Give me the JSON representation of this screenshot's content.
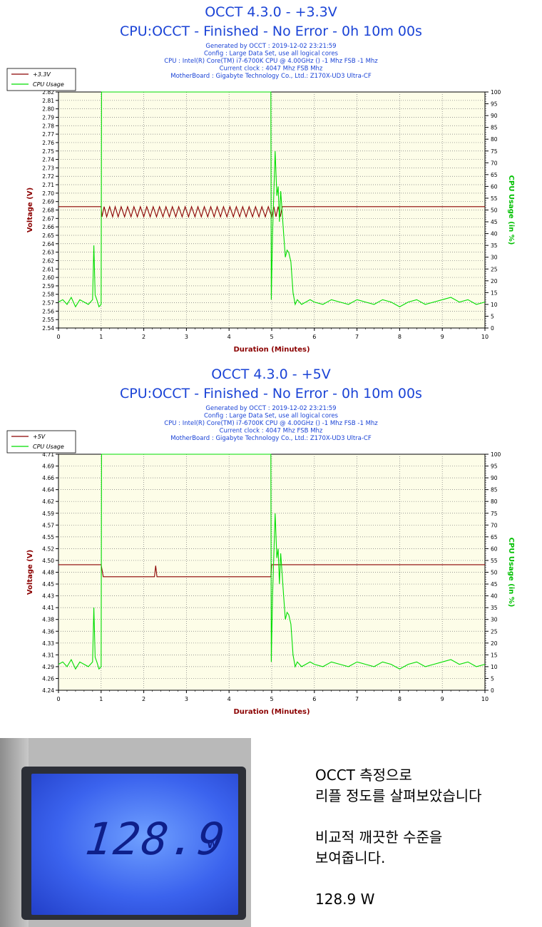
{
  "chart_data": [
    {
      "type": "line",
      "title": "OCCT 4.3.0 - +3.3V",
      "subtitle": "CPU:OCCT - Finished - No Error - 0h 10m 00s",
      "info": [
        "Generated by OCCT : 2019-12-02 23:21:59",
        "Config : Large Data Set, use all logical cores",
        "CPU : Intel(R) Core(TM) i7-6700K CPU @ 4.00GHz () -1 Mhz FSB -1 Mhz",
        "Current clock : 4047 Mhz FSB  Mhz",
        "MotherBoard : Gigabyte Technology Co., Ltd.: Z170X-UD3 Ultra-CF"
      ],
      "xlabel": "Duration (Minutes)",
      "ylabel": "Voltage (V)",
      "y2label": "CPU Usage (in %)",
      "xlim": [
        0,
        10
      ],
      "ylim": [
        2.54,
        2.82
      ],
      "y2lim": [
        0,
        100
      ],
      "x_ticks": [
        "0",
        "1",
        "2",
        "3",
        "4",
        "5",
        "6",
        "7",
        "8",
        "9",
        "10"
      ],
      "y_ticks": [
        "2.54",
        "2.55",
        "2.56",
        "2.57",
        "2.58",
        "2.59",
        "2.60",
        "2.61",
        "2.62",
        "2.63",
        "2.64",
        "2.65",
        "2.66",
        "2.67",
        "2.68",
        "2.69",
        "2.70",
        "2.71",
        "2.72",
        "2.73",
        "2.74",
        "2.75",
        "2.76",
        "2.77",
        "2.78",
        "2.79",
        "2.80",
        "2.81",
        "2.82"
      ],
      "y2_ticks": [
        "0",
        "5",
        "10",
        "15",
        "20",
        "25",
        "30",
        "35",
        "40",
        "45",
        "50",
        "55",
        "60",
        "65",
        "70",
        "75",
        "80",
        "85",
        "90",
        "95",
        "100"
      ],
      "legend_position": "top-left",
      "series": [
        {
          "name": "+3.3V",
          "color": "#8b0000",
          "axis": "left",
          "x": [
            0,
            1.0,
            1.02,
            1.07,
            1.13,
            1.2,
            1.27,
            1.33,
            1.4,
            1.47,
            1.55,
            1.62,
            1.7,
            1.77,
            1.85,
            1.92,
            2.0,
            2.07,
            2.15,
            2.22,
            2.3,
            2.37,
            2.45,
            2.52,
            2.6,
            2.67,
            2.75,
            2.82,
            2.9,
            2.97,
            3.05,
            3.12,
            3.2,
            3.27,
            3.35,
            3.42,
            3.5,
            3.57,
            3.65,
            3.72,
            3.8,
            3.87,
            3.95,
            4.02,
            4.1,
            4.17,
            4.25,
            4.32,
            4.4,
            4.47,
            4.55,
            4.62,
            4.7,
            4.77,
            4.85,
            4.92,
            5.0,
            5.05,
            5.1,
            5.15,
            5.2,
            5.25,
            5.3,
            10
          ],
          "y": [
            2.684,
            2.684,
            2.672,
            2.684,
            2.672,
            2.684,
            2.672,
            2.684,
            2.672,
            2.684,
            2.672,
            2.684,
            2.672,
            2.684,
            2.672,
            2.684,
            2.672,
            2.684,
            2.672,
            2.684,
            2.672,
            2.684,
            2.672,
            2.684,
            2.672,
            2.684,
            2.672,
            2.684,
            2.672,
            2.684,
            2.672,
            2.684,
            2.672,
            2.684,
            2.672,
            2.684,
            2.672,
            2.684,
            2.672,
            2.684,
            2.672,
            2.684,
            2.672,
            2.684,
            2.672,
            2.684,
            2.672,
            2.684,
            2.672,
            2.684,
            2.672,
            2.684,
            2.672,
            2.684,
            2.672,
            2.684,
            2.672,
            2.684,
            2.672,
            2.684,
            2.672,
            2.684,
            2.684,
            2.684
          ]
        },
        {
          "name": "CPU Usage",
          "color": "#00dd00",
          "axis": "right",
          "x": [
            0,
            0.1,
            0.2,
            0.3,
            0.4,
            0.5,
            0.6,
            0.7,
            0.8,
            0.83,
            0.86,
            0.9,
            0.95,
            1.0,
            1.01,
            1.02,
            4.98,
            4.99,
            5.02,
            5.08,
            5.12,
            5.15,
            5.18,
            5.21,
            5.25,
            5.28,
            5.32,
            5.36,
            5.4,
            5.45,
            5.5,
            5.55,
            5.6,
            5.7,
            5.8,
            5.9,
            6.0,
            6.2,
            6.4,
            6.6,
            6.8,
            7.0,
            7.2,
            7.4,
            7.6,
            7.8,
            8.0,
            8.2,
            8.4,
            8.6,
            8.8,
            9.0,
            9.2,
            9.4,
            9.6,
            9.8,
            10
          ],
          "y": [
            11,
            12,
            10,
            13,
            9,
            12,
            11,
            10,
            12,
            35,
            14,
            12,
            9,
            10,
            100,
            100,
            100,
            12,
            40,
            75,
            56,
            60,
            45,
            58,
            48,
            40,
            30,
            33,
            32,
            28,
            15,
            10,
            12,
            10,
            11,
            12,
            11,
            10,
            12,
            11,
            10,
            12,
            11,
            10,
            12,
            11,
            9,
            11,
            12,
            10,
            11,
            12,
            13,
            11,
            12,
            10,
            11
          ]
        }
      ]
    },
    {
      "type": "line",
      "title": "OCCT 4.3.0 - +5V",
      "subtitle": "CPU:OCCT - Finished - No Error - 0h 10m 00s",
      "info": [
        "Generated by OCCT : 2019-12-02 23:21:59",
        "Config : Large Data Set, use all logical cores",
        "CPU : Intel(R) Core(TM) i7-6700K CPU @ 4.00GHz () -1 Mhz FSB -1 Mhz",
        "Current clock : 4047 Mhz FSB  Mhz",
        "MotherBoard : Gigabyte Technology Co., Ltd.: Z170X-UD3 Ultra-CF"
      ],
      "xlabel": "Duration (Minutes)",
      "ylabel": "Voltage (V)",
      "y2label": "CPU Usage (in %)",
      "xlim": [
        0,
        10
      ],
      "ylim": [
        4.24,
        4.71
      ],
      "y2lim": [
        0,
        100
      ],
      "x_ticks": [
        "0",
        "1",
        "2",
        "3",
        "4",
        "5",
        "6",
        "7",
        "8",
        "9",
        "10"
      ],
      "y_ticks": [
        "4.24",
        "4.26",
        "4.29",
        "4.31",
        "4.33",
        "4.36",
        "4.38",
        "4.41",
        "4.43",
        "4.45",
        "4.48",
        "4.50",
        "4.52",
        "4.55",
        "4.57",
        "4.59",
        "4.62",
        "4.64",
        "4.66",
        "4.69",
        "4.71"
      ],
      "y2_ticks": [
        "0",
        "5",
        "10",
        "15",
        "20",
        "25",
        "30",
        "35",
        "40",
        "45",
        "50",
        "55",
        "60",
        "65",
        "70",
        "75",
        "80",
        "85",
        "90",
        "95",
        "100"
      ],
      "legend_position": "top-left",
      "series": [
        {
          "name": "+5V",
          "color": "#8b0000",
          "axis": "left",
          "x": [
            0,
            1.0,
            1.05,
            2.25,
            2.28,
            2.31,
            4.98,
            5.0,
            10
          ],
          "y": [
            4.49,
            4.49,
            4.466,
            4.466,
            4.488,
            4.466,
            4.466,
            4.49,
            4.49
          ]
        },
        {
          "name": "CPU Usage",
          "color": "#00dd00",
          "axis": "right",
          "x": [
            0,
            0.1,
            0.2,
            0.3,
            0.4,
            0.5,
            0.6,
            0.7,
            0.8,
            0.83,
            0.86,
            0.9,
            0.95,
            1.0,
            1.01,
            1.02,
            4.98,
            4.99,
            5.02,
            5.08,
            5.12,
            5.15,
            5.18,
            5.21,
            5.25,
            5.28,
            5.32,
            5.36,
            5.4,
            5.45,
            5.5,
            5.55,
            5.6,
            5.7,
            5.8,
            5.9,
            6.0,
            6.2,
            6.4,
            6.6,
            6.8,
            7.0,
            7.2,
            7.4,
            7.6,
            7.8,
            8.0,
            8.2,
            8.4,
            8.6,
            8.8,
            9.0,
            9.2,
            9.4,
            9.6,
            9.8,
            10
          ],
          "y": [
            11,
            12,
            10,
            13,
            9,
            12,
            11,
            10,
            12,
            35,
            14,
            12,
            9,
            10,
            100,
            100,
            100,
            12,
            40,
            75,
            56,
            60,
            45,
            58,
            48,
            40,
            30,
            33,
            32,
            28,
            15,
            10,
            12,
            10,
            11,
            12,
            11,
            10,
            12,
            11,
            10,
            12,
            11,
            10,
            12,
            11,
            9,
            11,
            12,
            10,
            11,
            12,
            13,
            11,
            12,
            10,
            11
          ]
        }
      ]
    }
  ],
  "photo": {
    "display_value": "128.9",
    "unit": "W"
  },
  "caption": {
    "line1": "OCCT 측정으로",
    "line2": "리플 정도를 살펴보았습니다",
    "line3": "비교적 깨끗한 수준을",
    "line4": "보여줍니다.",
    "line5": "128.9 W"
  },
  "colors": {
    "title": "#1a43d6",
    "info": "#1a43d6",
    "axis_label_left": "#8b0000",
    "axis_label_right": "#00c000",
    "axis_label_x": "#8b0000",
    "plot_bg": "#fdfde8"
  }
}
